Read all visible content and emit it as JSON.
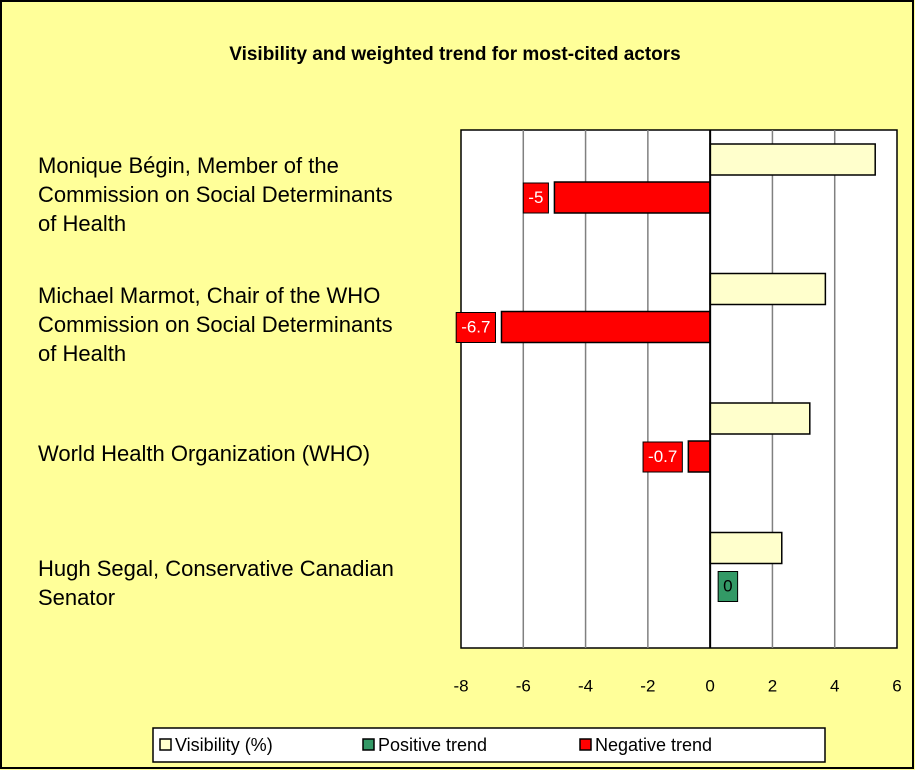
{
  "chart_data": {
    "type": "hbar",
    "title": "Visibility and weighted trend for most-cited actors",
    "categories": [
      "Monique Bégin, Member of the Commission on Social Determinants of Health",
      "Michael Marmot, Chair of the WHO Commission on Social Determinants of Health",
      "World Health Organization (WHO)",
      "Hugh Segal, Conservative Canadian Senator"
    ],
    "series": [
      {
        "name": "Visibility (%)",
        "color": "#FFFFCC",
        "values": [
          5.3,
          3.7,
          3.2,
          2.3
        ]
      },
      {
        "name": "Positive trend",
        "color": "#339966",
        "values": [
          null,
          null,
          null,
          0
        ],
        "data_labels": true
      },
      {
        "name": "Negative trend",
        "color": "#FF0000",
        "values": [
          -5,
          -6.7,
          -0.7,
          null
        ],
        "data_labels": true
      }
    ],
    "xlim": [
      -8,
      6
    ],
    "xticks": [
      -8,
      -6,
      -4,
      -2,
      0,
      2,
      4,
      6
    ],
    "grid": true,
    "legend": "bottom"
  }
}
